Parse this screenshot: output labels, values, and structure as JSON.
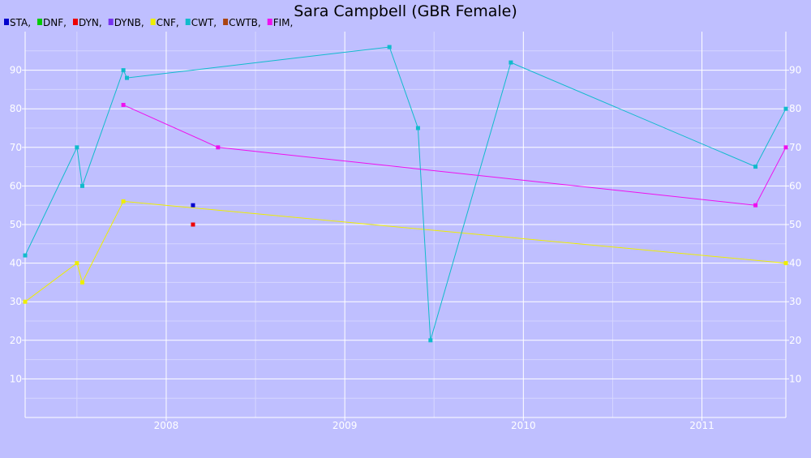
{
  "chart_data": {
    "type": "line",
    "title": "Sara Campbell (GBR Female)",
    "xlabel": "",
    "ylabel": "",
    "xlim": [
      2007.21,
      2011.47
    ],
    "ylim": [
      0,
      100
    ],
    "x_ticks": [
      2008,
      2009,
      2010,
      2011
    ],
    "x_minor_ticks": [
      2007.5,
      2008.5,
      2009.5,
      2010.5
    ],
    "y_ticks": [
      10,
      20,
      30,
      40,
      50,
      60,
      70,
      80,
      90
    ],
    "y_minor_ticks": [
      5,
      15,
      25,
      35,
      45,
      55,
      65,
      75,
      85,
      95
    ],
    "grid": true,
    "legend_position": "top-left",
    "series": [
      {
        "name": "STA",
        "color": "#0000cc",
        "points": [
          [
            2008.15,
            55
          ]
        ]
      },
      {
        "name": "DNF",
        "color": "#00cc00",
        "points": []
      },
      {
        "name": "DYN",
        "color": "#ee0000",
        "points": [
          [
            2008.15,
            50
          ]
        ]
      },
      {
        "name": "DYNB",
        "color": "#7733ee",
        "points": []
      },
      {
        "name": "CNF",
        "color": "#eeee00",
        "points": [
          [
            2007.21,
            30
          ],
          [
            2007.5,
            40
          ],
          [
            2007.53,
            35
          ],
          [
            2007.76,
            56
          ],
          [
            2011.47,
            40
          ]
        ]
      },
      {
        "name": "CWT",
        "color": "#11bbcc",
        "points": [
          [
            2007.21,
            42
          ],
          [
            2007.5,
            70
          ],
          [
            2007.53,
            60
          ],
          [
            2007.76,
            90
          ],
          [
            2007.78,
            88
          ],
          [
            2009.25,
            96
          ],
          [
            2009.41,
            75
          ],
          [
            2009.48,
            20
          ],
          [
            2009.93,
            92
          ],
          [
            2011.3,
            65
          ],
          [
            2011.47,
            80
          ]
        ]
      },
      {
        "name": "CWTB",
        "color": "#aa4411",
        "points": []
      },
      {
        "name": "FIM",
        "color": "#ee11ee",
        "points": [
          [
            2007.76,
            81
          ],
          [
            2008.29,
            70
          ],
          [
            2011.3,
            55
          ],
          [
            2011.47,
            70
          ]
        ]
      }
    ]
  }
}
